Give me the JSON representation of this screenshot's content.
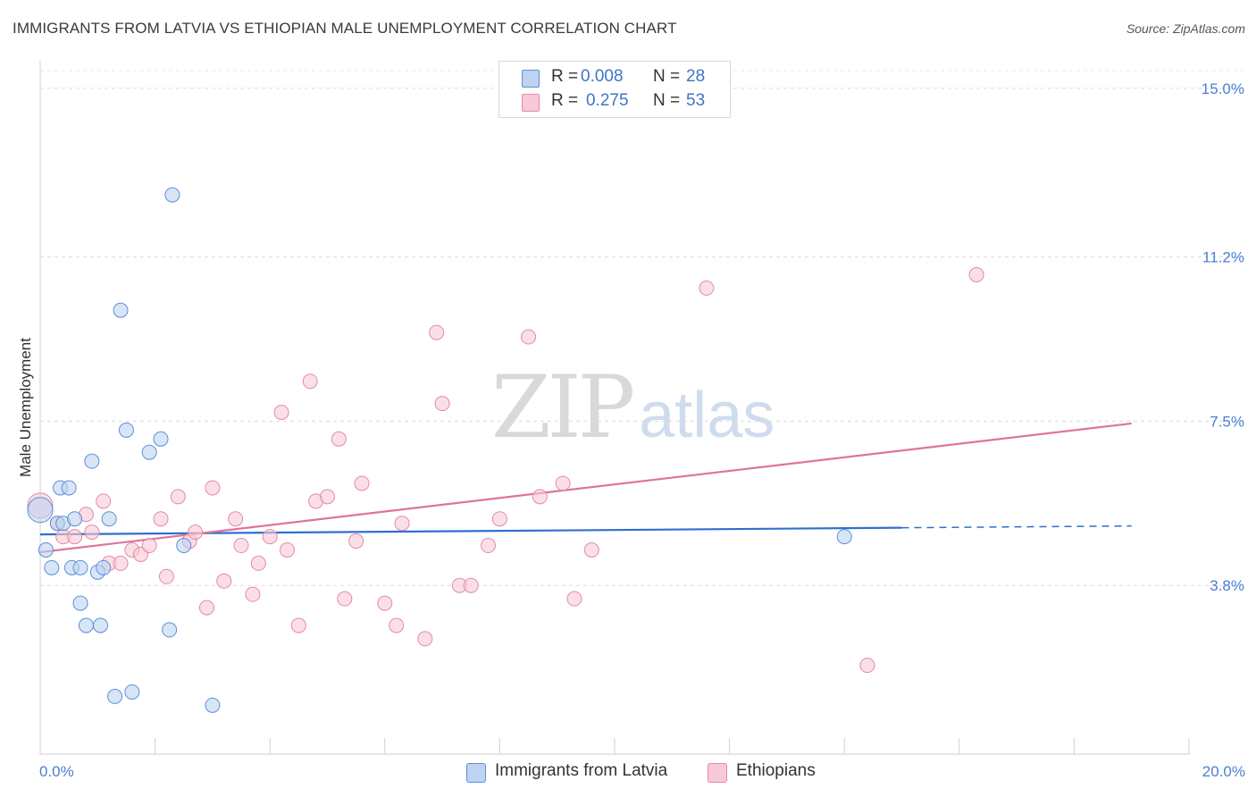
{
  "title": "IMMIGRANTS FROM LATVIA VS ETHIOPIAN MALE UNEMPLOYMENT CORRELATION CHART",
  "source": "Source: ZipAtlas.com",
  "watermark": {
    "zip": "ZIP",
    "atlas": "atlas"
  },
  "legend": {
    "r_label": "R =",
    "n_label": "N =",
    "rows": [
      {
        "r": "0.008",
        "n": "28"
      },
      {
        "r": "0.275",
        "n": "53"
      }
    ]
  },
  "bottom_legend": [
    "Immigrants from Latvia",
    "Ethiopians"
  ],
  "colors": {
    "blue_fill": "#bcd3f2",
    "blue_stroke": "#5c8fd6",
    "blue_line": "#2e6fcf",
    "pink_fill": "#f8c9d6",
    "pink_stroke": "#e48aa6",
    "pink_line": "#e0729b",
    "tick_text": "#4a7fd0"
  },
  "chart_data": {
    "type": "scatter",
    "title": "IMMIGRANTS FROM LATVIA VS ETHIOPIAN MALE UNEMPLOYMENT CORRELATION CHART",
    "xlabel": "",
    "ylabel": "Male Unemployment",
    "xlim": [
      0,
      20
    ],
    "ylim": [
      0,
      15.4
    ],
    "x_tick_labels": [
      "0.0%",
      "20.0%"
    ],
    "y_ticks": [
      3.8,
      7.5,
      11.2,
      15.0
    ],
    "y_tick_labels": [
      "3.8%",
      "7.5%",
      "11.2%",
      "15.0%"
    ],
    "grid": true,
    "legend_position": "top-center",
    "series": [
      {
        "name": "Immigrants from Latvia",
        "r": 0.008,
        "n": 28,
        "trend": {
          "x0": 0,
          "y0": 4.95,
          "x1": 15.0,
          "y1": 5.1,
          "dash_to": 19.0
        },
        "points": [
          [
            0.0,
            5.5
          ],
          [
            0.1,
            4.6
          ],
          [
            0.2,
            4.2
          ],
          [
            0.3,
            5.2
          ],
          [
            0.35,
            6.0
          ],
          [
            0.4,
            5.2
          ],
          [
            0.5,
            6.0
          ],
          [
            0.55,
            4.2
          ],
          [
            0.6,
            5.3
          ],
          [
            0.7,
            4.2
          ],
          [
            0.7,
            3.4
          ],
          [
            0.8,
            2.9
          ],
          [
            0.9,
            6.6
          ],
          [
            1.0,
            4.1
          ],
          [
            1.05,
            2.9
          ],
          [
            1.1,
            4.2
          ],
          [
            1.2,
            5.3
          ],
          [
            1.3,
            1.3
          ],
          [
            1.4,
            10.0
          ],
          [
            1.5,
            7.3
          ],
          [
            1.6,
            1.4
          ],
          [
            1.9,
            6.8
          ],
          [
            2.1,
            7.1
          ],
          [
            2.25,
            2.8
          ],
          [
            2.3,
            12.6
          ],
          [
            2.5,
            4.7
          ],
          [
            3.0,
            1.1
          ],
          [
            14.0,
            4.9
          ]
        ]
      },
      {
        "name": "Ethiopians",
        "r": 0.275,
        "n": 53,
        "trend": {
          "x0": 0,
          "y0": 4.55,
          "x1": 19.0,
          "y1": 7.45
        },
        "points": [
          [
            0.0,
            5.6
          ],
          [
            0.3,
            5.2
          ],
          [
            0.4,
            4.9
          ],
          [
            0.6,
            4.9
          ],
          [
            0.8,
            5.4
          ],
          [
            0.9,
            5.0
          ],
          [
            1.1,
            5.7
          ],
          [
            1.2,
            4.3
          ],
          [
            1.4,
            4.3
          ],
          [
            1.6,
            4.6
          ],
          [
            1.75,
            4.5
          ],
          [
            1.9,
            4.7
          ],
          [
            2.1,
            5.3
          ],
          [
            2.2,
            4.0
          ],
          [
            2.4,
            5.8
          ],
          [
            2.6,
            4.8
          ],
          [
            2.7,
            5.0
          ],
          [
            2.9,
            3.3
          ],
          [
            3.0,
            6.0
          ],
          [
            3.2,
            3.9
          ],
          [
            3.4,
            5.3
          ],
          [
            3.5,
            4.7
          ],
          [
            3.7,
            3.6
          ],
          [
            3.8,
            4.3
          ],
          [
            4.0,
            4.9
          ],
          [
            4.2,
            7.7
          ],
          [
            4.3,
            4.6
          ],
          [
            4.5,
            2.9
          ],
          [
            4.7,
            8.4
          ],
          [
            4.8,
            5.7
          ],
          [
            5.0,
            5.8
          ],
          [
            5.2,
            7.1
          ],
          [
            5.3,
            3.5
          ],
          [
            5.5,
            4.8
          ],
          [
            5.6,
            6.1
          ],
          [
            6.0,
            3.4
          ],
          [
            6.2,
            2.9
          ],
          [
            6.3,
            5.2
          ],
          [
            6.7,
            2.6
          ],
          [
            6.9,
            9.5
          ],
          [
            7.0,
            7.9
          ],
          [
            7.3,
            3.8
          ],
          [
            7.5,
            3.8
          ],
          [
            7.8,
            4.7
          ],
          [
            8.0,
            5.3
          ],
          [
            8.5,
            9.4
          ],
          [
            8.7,
            5.8
          ],
          [
            9.1,
            6.1
          ],
          [
            9.3,
            3.5
          ],
          [
            9.6,
            4.6
          ],
          [
            11.6,
            10.5
          ],
          [
            14.4,
            2.0
          ],
          [
            16.3,
            10.8
          ]
        ]
      }
    ]
  }
}
